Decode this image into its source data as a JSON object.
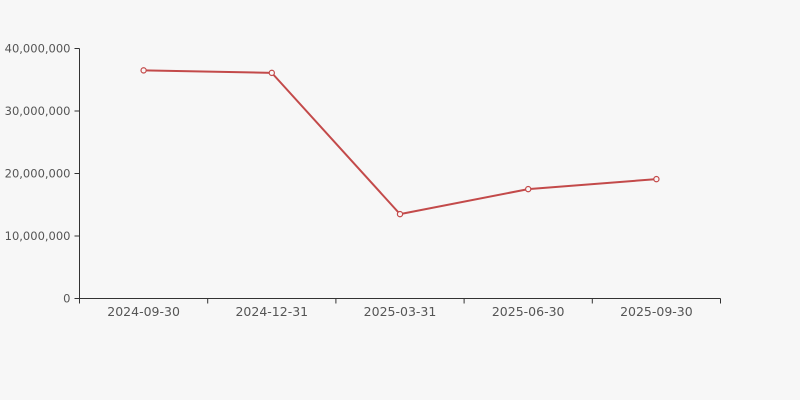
{
  "chart_data": {
    "type": "line",
    "title": "",
    "xlabel": "",
    "ylabel": "",
    "categories": [
      "2024-09-30",
      "2024-12-31",
      "2025-03-31",
      "2025-06-30",
      "2025-09-30"
    ],
    "values": [
      36500000,
      36100000,
      13500000,
      17500000,
      19100000
    ],
    "ylim": [
      0,
      40000000
    ],
    "yticks": [
      0,
      10000000,
      20000000,
      30000000,
      40000000
    ],
    "ytick_labels": [
      "0",
      "10,000,000",
      "20,000,000",
      "30,000,000",
      "40,000,000"
    ],
    "grid": false,
    "legend": false,
    "marker": "open-circle",
    "colors": {
      "line": "#c34a4a",
      "marker_fill": "#f9f7f7",
      "axis": "#333333",
      "tick_label": "#555555",
      "background": "#f7f7f7"
    }
  }
}
